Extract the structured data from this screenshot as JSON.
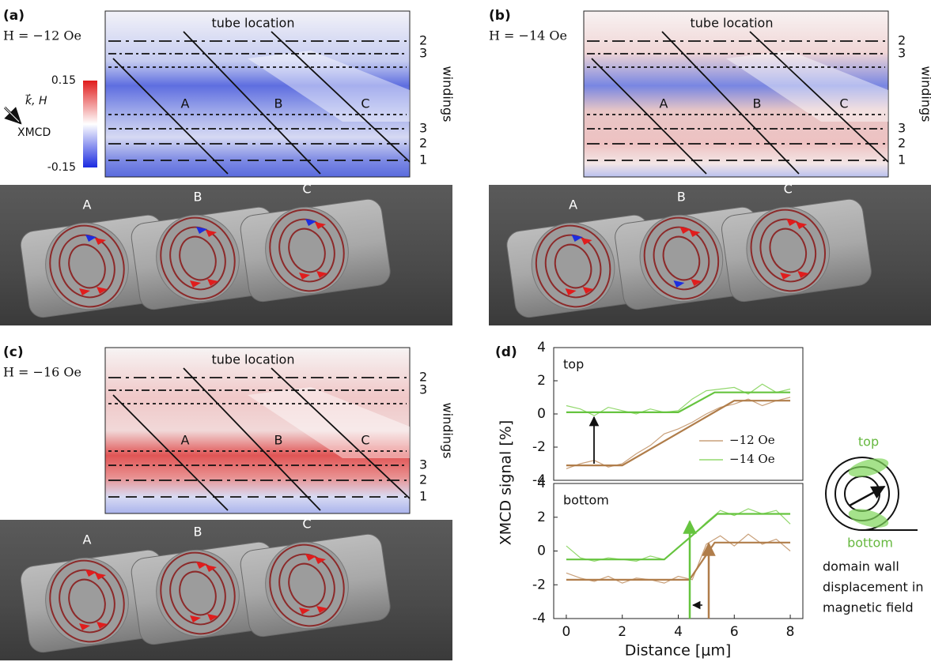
{
  "panels": [
    {
      "label": "(a)",
      "field": "H = −12 Oe",
      "title": "tube location",
      "axis": "windings",
      "windings": [
        "2",
        "3",
        "3",
        "2",
        "1"
      ],
      "tubes": [
        "A",
        "B",
        "C"
      ],
      "render_tubes": [
        "A",
        "B",
        "C"
      ]
    },
    {
      "label": "(b)",
      "field": "H = −14 Oe",
      "title": "tube location",
      "axis": "windings",
      "windings": [
        "2",
        "3",
        "3",
        "2",
        "1"
      ],
      "tubes": [
        "A",
        "B",
        "C"
      ],
      "render_tubes": [
        "A",
        "B",
        "C"
      ]
    },
    {
      "label": "(c)",
      "field": "H = −16 Oe",
      "title": "tube location",
      "axis": "windings",
      "windings": [
        "2",
        "3",
        "3",
        "2",
        "1"
      ],
      "tubes": [
        "A",
        "B",
        "C"
      ],
      "render_tubes": [
        "A",
        "B",
        "C"
      ]
    }
  ],
  "colorbar": {
    "max": "0.15",
    "min": "-0.15",
    "name": "XMCD",
    "beam": "k⃗, H"
  },
  "chart_data": [
    {
      "type": "line",
      "panel_label": "(d)",
      "title": "top",
      "ylabel": "XMCD signal [%]",
      "xlim": [
        -0.45,
        8.45
      ],
      "ylim": [
        -4,
        4
      ],
      "yticks": [
        -4,
        -2,
        0,
        2,
        4
      ],
      "legend": "lower right",
      "series": [
        {
          "name": "−12 Oe",
          "color": "#c9a07a",
          "x": [
            0,
            0.5,
            1,
            1.5,
            2,
            2.5,
            3,
            3.5,
            4,
            4.5,
            5,
            5.5,
            6,
            6.5,
            7,
            7.5,
            8
          ],
          "values": [
            -3.3,
            -3.0,
            -2.8,
            -3.2,
            -3.0,
            -2.4,
            -1.9,
            -1.2,
            -0.9,
            -0.5,
            0,
            0.4,
            0.6,
            0.9,
            0.5,
            0.8,
            1.0
          ]
        },
        {
          "name": "−14 Oe",
          "color": "#93d86e",
          "x": [
            0,
            0.5,
            1,
            1.5,
            2,
            2.5,
            3,
            3.5,
            4,
            4.5,
            5,
            5.5,
            6,
            6.5,
            7,
            7.5,
            8
          ],
          "values": [
            0.5,
            0.3,
            -0.1,
            0.4,
            0.2,
            0,
            0.3,
            0.1,
            0.2,
            0.9,
            1.4,
            1.5,
            1.6,
            1.2,
            1.8,
            1.3,
            1.5
          ]
        },
        {
          "color": "#b07d4a",
          "x": [
            0,
            2,
            6,
            8
          ],
          "values": [
            -3.1,
            -3.1,
            0.8,
            0.8
          ]
        },
        {
          "color": "#66c43f",
          "x": [
            0,
            4,
            5.3,
            8
          ],
          "values": [
            0.1,
            0.1,
            1.3,
            1.3
          ]
        }
      ]
    },
    {
      "type": "line",
      "title": "bottom",
      "xlabel": "Distance [μm]",
      "xlim": [
        -0.45,
        8.45
      ],
      "ylim": [
        -4,
        4
      ],
      "yticks": [
        -4,
        -2,
        0,
        2,
        4
      ],
      "xticks": [
        0,
        2,
        4,
        6,
        8
      ],
      "series": [
        {
          "color": "#93d86e",
          "x": [
            0,
            0.5,
            1,
            1.5,
            2,
            2.5,
            3,
            3.5,
            4,
            4.5,
            5,
            5.5,
            6,
            6.5,
            7,
            7.5,
            8
          ],
          "values": [
            0.3,
            -0.4,
            -0.6,
            -0.4,
            -0.5,
            -0.6,
            -0.3,
            -0.5,
            0.2,
            0.9,
            1.7,
            2.4,
            2.1,
            2.5,
            2.2,
            2.4,
            1.6
          ]
        },
        {
          "color": "#c9a07a",
          "x": [
            0,
            0.5,
            1,
            1.5,
            2,
            2.5,
            3,
            3.5,
            4,
            4.5,
            5,
            5.5,
            6,
            6.5,
            7,
            7.5,
            8
          ],
          "values": [
            -1.3,
            -1.6,
            -1.8,
            -1.5,
            -1.9,
            -1.6,
            -1.7,
            -1.9,
            -1.5,
            -1.7,
            0.4,
            0.9,
            0.3,
            1.0,
            0.4,
            0.7,
            0.0
          ]
        },
        {
          "color": "#66c43f",
          "x": [
            0,
            3.5,
            5.4,
            8
          ],
          "values": [
            -0.5,
            -0.5,
            2.2,
            2.2
          ]
        },
        {
          "color": "#b07d4a",
          "x": [
            0,
            4.4,
            5.3,
            8
          ],
          "values": [
            -1.7,
            -1.7,
            0.5,
            0.5
          ]
        }
      ]
    }
  ],
  "schematic": {
    "top": "top",
    "bottom": "bottom",
    "caption": [
      "domain wall",
      "displacement in",
      "magnetic field"
    ]
  }
}
